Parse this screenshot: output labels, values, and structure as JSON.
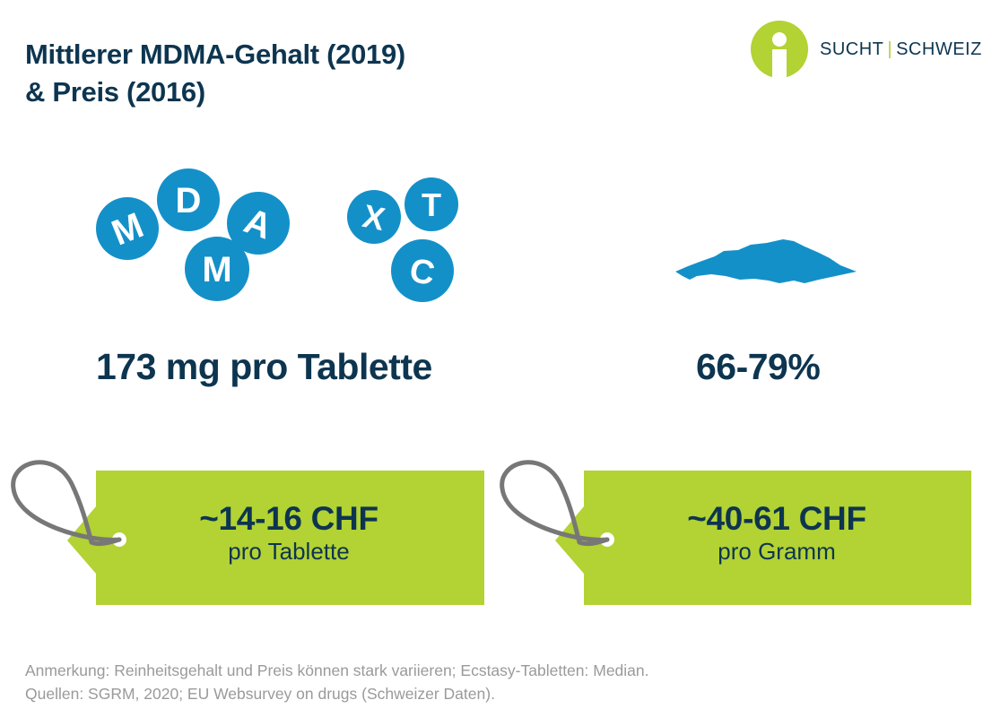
{
  "header": {
    "title_line1": "Mittlerer MDMA-Gehalt (2019)",
    "title_line2": "& Preis (2016)"
  },
  "logo": {
    "left": "SUCHT",
    "separator": "|",
    "right": "SCHWEIZ"
  },
  "pills_left": {
    "letters": [
      "M",
      "D",
      "A",
      "M"
    ]
  },
  "pills_right": {
    "letters": [
      "X",
      "T",
      "C"
    ]
  },
  "stats": {
    "tablet_content": "173 mg pro Tablette",
    "powder_purity": "66-79%"
  },
  "prices": {
    "tablet_price": "~14-16 CHF",
    "tablet_unit": "pro Tablette",
    "gram_price": "~40-61 CHF",
    "gram_unit": "pro Gramm"
  },
  "footer": {
    "note": "Anmerkung: Reinheitsgehalt und Preis können stark variieren; Ecstasy-Tabletten: Median.",
    "sources": "Quellen: SGRM, 2020; EU Websurvey on drugs (Schweizer Daten)."
  },
  "colors": {
    "navy": "#0d3550",
    "pill_blue": "#1490c9",
    "lime": "#b3d233",
    "string_gray": "#777777",
    "footer_gray": "#9a9a9a"
  }
}
